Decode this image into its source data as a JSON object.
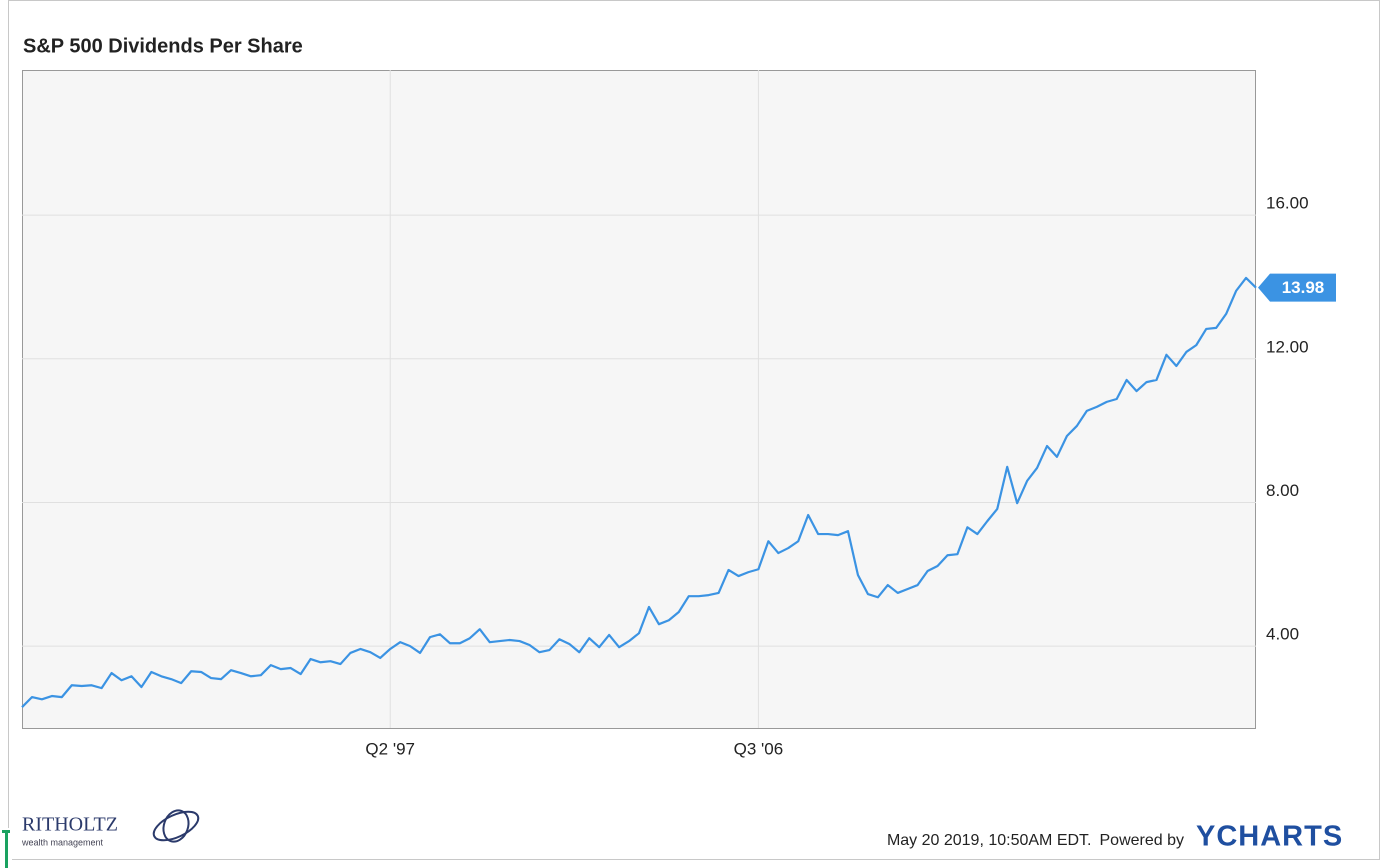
{
  "chart_data": {
    "type": "line",
    "title": "S&P 500 Dividends Per Share",
    "categories": [
      null,
      null,
      null,
      null,
      null,
      null,
      null,
      null,
      null,
      null,
      null,
      null,
      null,
      null,
      null,
      null,
      null,
      null,
      null,
      null,
      null,
      null,
      null,
      null,
      null,
      null,
      null,
      null,
      null,
      null,
      null,
      null,
      null,
      null,
      null,
      null,
      null,
      "Q2 '97",
      null,
      null,
      null,
      null,
      null,
      null,
      null,
      null,
      null,
      null,
      null,
      null,
      null,
      null,
      null,
      null,
      null,
      null,
      null,
      null,
      null,
      null,
      null,
      null,
      null,
      null,
      null,
      null,
      null,
      null,
      null,
      null,
      null,
      null,
      null,
      null,
      "Q3 '06",
      null,
      null,
      null,
      null,
      null,
      null,
      null,
      null,
      null,
      null,
      null,
      null,
      null,
      null,
      null,
      null,
      null,
      null,
      null,
      null,
      null,
      null,
      null,
      null,
      null,
      null,
      null,
      null,
      null,
      null,
      null,
      null,
      null,
      null,
      null,
      null,
      null,
      null,
      null,
      null,
      null,
      null,
      null,
      null,
      null,
      null,
      null,
      null,
      null,
      null
    ],
    "series": [
      {
        "color": "#3b93e3",
        "values": [
          2.3,
          2.58,
          2.52,
          2.61,
          2.58,
          2.91,
          2.89,
          2.91,
          2.83,
          3.25,
          3.05,
          3.16,
          2.86,
          3.28,
          3.16,
          3.08,
          2.97,
          3.3,
          3.28,
          3.11,
          3.08,
          3.33,
          3.25,
          3.16,
          3.19,
          3.47,
          3.36,
          3.39,
          3.22,
          3.64,
          3.55,
          3.58,
          3.5,
          3.81,
          3.92,
          3.83,
          3.67,
          3.92,
          4.11,
          4.0,
          3.81,
          4.25,
          4.33,
          4.08,
          4.08,
          4.22,
          4.47,
          4.11,
          4.14,
          4.17,
          4.14,
          4.03,
          3.83,
          3.89,
          4.19,
          4.06,
          3.83,
          4.22,
          3.97,
          4.31,
          3.97,
          4.14,
          4.36,
          5.09,
          4.61,
          4.72,
          4.95,
          5.39,
          5.39,
          5.42,
          5.48,
          6.12,
          5.95,
          6.06,
          6.14,
          6.92,
          6.59,
          6.73,
          6.92,
          7.65,
          7.12,
          7.12,
          7.09,
          7.2,
          5.98,
          5.45,
          5.36,
          5.7,
          5.48,
          5.59,
          5.7,
          6.09,
          6.23,
          6.53,
          6.56,
          7.31,
          7.12,
          7.48,
          7.82,
          8.99,
          7.98,
          8.6,
          8.96,
          9.57,
          9.27,
          9.85,
          10.13,
          10.55,
          10.66,
          10.8,
          10.88,
          11.41,
          11.1,
          11.35,
          11.41,
          12.11,
          11.8,
          12.19,
          12.38,
          12.83,
          12.86,
          13.25,
          13.89,
          14.25,
          13.98
        ]
      }
    ],
    "ylim": [
      1.72,
      20.04
    ],
    "yticks": [
      {
        "value": 4,
        "label": "4.00"
      },
      {
        "value": 8,
        "label": "8.00"
      },
      {
        "value": 12,
        "label": "12.00"
      },
      {
        "value": 16,
        "label": "16.00"
      }
    ],
    "grid": true
  },
  "footer": {
    "timestamp": "May 20 2019, 10:50AM EDT.",
    "powered": "Powered by",
    "brand": "YCHARTS"
  },
  "logo": {
    "name": "RITHOLTZ",
    "tagline": "wealth management"
  }
}
